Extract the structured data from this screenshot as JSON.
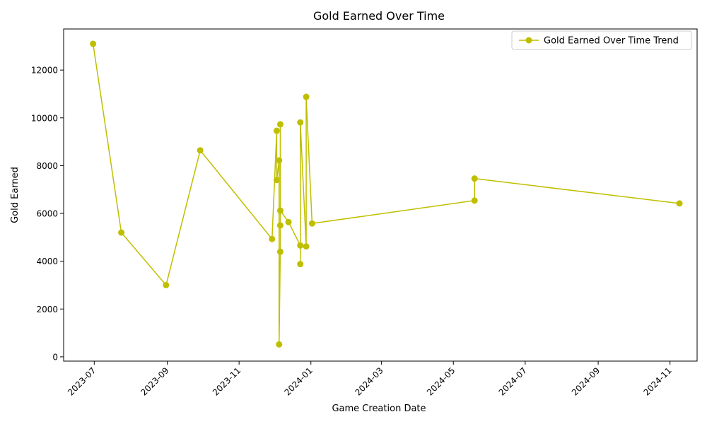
{
  "chart_data": {
    "type": "line",
    "title": "Gold Earned Over Time",
    "xlabel": "Game Creation Date",
    "ylabel": "Gold Earned",
    "x_ticks": [
      "2023-07",
      "2023-09",
      "2023-11",
      "2024-01",
      "2024-03",
      "2024-05",
      "2024-07",
      "2024-09",
      "2024-11"
    ],
    "y_ticks": [
      0,
      2000,
      4000,
      6000,
      8000,
      10000,
      12000
    ],
    "xlim": [
      "2023-06-05",
      "2024-11-24"
    ],
    "ylim": [
      -180,
      13720
    ],
    "grid": false,
    "legend_position": "top-right",
    "series": [
      {
        "name": "Gold Earned Over Time Trend",
        "color": "#bfbf00",
        "marker": "circle",
        "points": [
          {
            "x": "2023-06-30",
            "y": 13100
          },
          {
            "x": "2023-07-24",
            "y": 5200
          },
          {
            "x": "2023-08-31",
            "y": 3000
          },
          {
            "x": "2023-09-29",
            "y": 8640
          },
          {
            "x": "2023-11-29",
            "y": 4930
          },
          {
            "x": "2023-12-03",
            "y": 9460
          },
          {
            "x": "2023-12-03",
            "y": 7400
          },
          {
            "x": "2023-12-05",
            "y": 8220
          },
          {
            "x": "2023-12-05",
            "y": 520
          },
          {
            "x": "2023-12-06",
            "y": 4400
          },
          {
            "x": "2023-12-06",
            "y": 5500
          },
          {
            "x": "2023-12-06",
            "y": 9730
          },
          {
            "x": "2023-12-06",
            "y": 6120
          },
          {
            "x": "2023-12-13",
            "y": 5640
          },
          {
            "x": "2023-12-23",
            "y": 4660
          },
          {
            "x": "2023-12-23",
            "y": 3880
          },
          {
            "x": "2023-12-23",
            "y": 9810
          },
          {
            "x": "2023-12-28",
            "y": 4620
          },
          {
            "x": "2023-12-28",
            "y": 10880
          },
          {
            "x": "2024-01-02",
            "y": 5580
          },
          {
            "x": "2024-05-19",
            "y": 6540
          },
          {
            "x": "2024-05-19",
            "y": 7460
          },
          {
            "x": "2024-11-09",
            "y": 6420
          }
        ]
      }
    ]
  }
}
